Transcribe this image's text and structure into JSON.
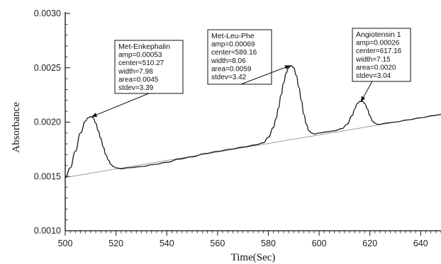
{
  "chart_data": {
    "type": "line",
    "xlabel": "Time(Sec)",
    "ylabel": "Absorbance",
    "xlim": [
      500,
      648
    ],
    "ylim": [
      0.001,
      0.003
    ],
    "x_ticks": [
      500,
      520,
      540,
      560,
      580,
      600,
      620,
      640
    ],
    "x_tick_labels": [
      "500",
      "520",
      "540",
      "560",
      "580",
      "600",
      "620",
      "640"
    ],
    "y_ticks": [
      0.001,
      0.0015,
      0.002,
      0.0025,
      0.003
    ],
    "y_tick_labels": [
      "0.0010",
      "0.0015",
      "0.0020",
      "0.0025",
      "0.0030"
    ],
    "baseline": {
      "x": [
        500,
        648
      ],
      "y": [
        0.00149,
        0.00207
      ]
    },
    "series": [
      {
        "x": [
          500,
          502,
          504,
          506,
          508,
          509,
          510,
          511,
          512,
          513,
          514,
          515,
          516,
          517,
          518,
          519,
          520,
          522,
          525,
          530,
          535,
          540,
          545,
          550,
          555,
          560,
          565,
          570,
          575,
          578,
          580,
          582,
          583,
          584,
          585,
          586,
          587,
          588,
          589,
          590,
          591,
          592,
          593,
          594,
          595,
          596,
          597,
          598,
          600,
          603,
          606,
          609,
          611,
          613,
          614,
          615,
          616,
          617,
          618,
          619,
          620,
          621,
          622,
          623,
          624,
          626,
          630,
          635,
          640,
          645,
          648
        ],
        "y": [
          0.00149,
          0.00158,
          0.00173,
          0.0019,
          0.00201,
          0.00204,
          0.00205,
          0.00204,
          0.00199,
          0.00192,
          0.00185,
          0.00177,
          0.0017,
          0.00165,
          0.00161,
          0.00159,
          0.00158,
          0.00157,
          0.00158,
          0.00159,
          0.00161,
          0.00163,
          0.00166,
          0.00168,
          0.00171,
          0.00173,
          0.00175,
          0.00177,
          0.00179,
          0.00181,
          0.00186,
          0.00195,
          0.00203,
          0.00213,
          0.00225,
          0.00236,
          0.00245,
          0.0025,
          0.00252,
          0.0025,
          0.00243,
          0.00232,
          0.0022,
          0.00207,
          0.00198,
          0.00192,
          0.0019,
          0.00189,
          0.0019,
          0.00191,
          0.00192,
          0.00194,
          0.00198,
          0.00206,
          0.00212,
          0.00217,
          0.00219,
          0.00219,
          0.00217,
          0.00212,
          0.00206,
          0.00201,
          0.00199,
          0.00198,
          0.00198,
          0.00199,
          0.002,
          0.00202,
          0.00204,
          0.00206,
          0.00207
        ]
      }
    ],
    "annotations": [
      {
        "id": "met-enkephalin",
        "lines": [
          "Met-Enkephalin",
          "amp=0.00053",
          "center=510.27",
          "width=7.98",
          "area=0.0045",
          "stdev=3.39"
        ],
        "arrow_to": {
          "x": 510.5,
          "y": 0.00205
        }
      },
      {
        "id": "met-leu-phe",
        "lines": [
          "Met-Leu-Phe",
          "amp=0.00069",
          "center=589.16",
          "width=8.06",
          "area=0.0059",
          "stdev=3.42"
        ],
        "arrow_to": {
          "x": 588.5,
          "y": 0.00252
        }
      },
      {
        "id": "angiotensin-1",
        "lines": [
          "Angiotensin 1",
          "amp=0.00026",
          "center=617.16",
          "width=7.15",
          "area=0.0020",
          "stdev=3.04"
        ],
        "arrow_to": {
          "x": 616.5,
          "y": 0.00219
        }
      }
    ],
    "grid": false,
    "legend": "none"
  }
}
